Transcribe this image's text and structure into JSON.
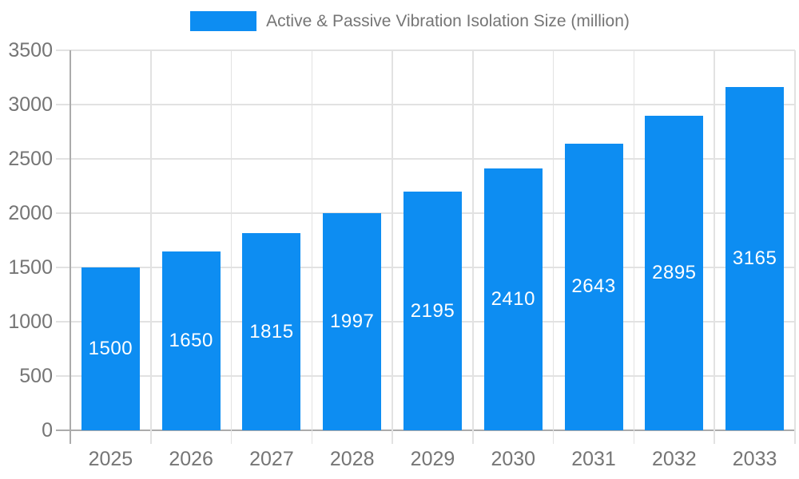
{
  "legend": {
    "label": "Active & Passive Vibration Isolation Size (million)"
  },
  "chart_data": {
    "type": "bar",
    "title": "Active & Passive Vibration Isolation Size (million)",
    "categories": [
      "2025",
      "2026",
      "2027",
      "2028",
      "2029",
      "2030",
      "2031",
      "2032",
      "2033"
    ],
    "values": [
      1500,
      1650,
      1815,
      1997,
      2195,
      2410,
      2643,
      2895,
      3165
    ],
    "series_name": "Active & Passive Vibration Isolation Size (million)",
    "xlabel": "",
    "ylabel": "",
    "ylim": [
      0,
      3500
    ],
    "yticks": [
      0,
      500,
      1000,
      1500,
      2000,
      2500,
      3000,
      3500
    ],
    "grid": true,
    "legend_position": "top-center",
    "value_labels": "inside-center",
    "colors": {
      "bar": "#0d8df2",
      "bar_value_text": "#ffffff",
      "axis_line": "#ababab",
      "gridline": "#e2e2e2",
      "tick_text": "#757575",
      "legend_text": "#757575",
      "background": "#ffffff"
    }
  }
}
